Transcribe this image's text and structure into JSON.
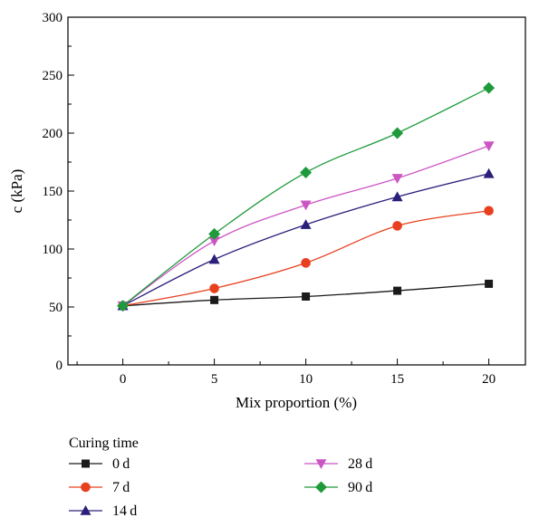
{
  "chart_data": {
    "type": "line",
    "title": "",
    "xlabel": "Mix proportion (%)",
    "ylabel": "c (kPa)",
    "x": [
      0,
      5,
      10,
      15,
      20
    ],
    "xlim": [
      -3,
      22
    ],
    "ylim": [
      0,
      300
    ],
    "x_ticks": [
      0,
      5,
      10,
      15,
      20
    ],
    "y_ticks": [
      0,
      50,
      100,
      150,
      200,
      250,
      300
    ],
    "grid": false,
    "legend_title": "Curing time",
    "legend_position": "bottom",
    "series": [
      {
        "name": "0 d",
        "marker": "square",
        "color": "#1a1a1a",
        "values": [
          51,
          56,
          59,
          64,
          70
        ]
      },
      {
        "name": "7 d",
        "marker": "circle",
        "color": "#e8401f",
        "values": [
          51,
          66,
          88,
          120,
          133
        ]
      },
      {
        "name": "14 d",
        "marker": "triangle-up",
        "color": "#2a1f7a",
        "values": [
          51,
          91,
          121,
          145,
          165
        ]
      },
      {
        "name": "28 d",
        "marker": "triangle-down",
        "color": "#cc55c4",
        "values": [
          51,
          107,
          138,
          161,
          189
        ]
      },
      {
        "name": "90 d",
        "marker": "diamond",
        "color": "#1e9a3a",
        "values": [
          51,
          113,
          166,
          200,
          239
        ]
      }
    ]
  }
}
